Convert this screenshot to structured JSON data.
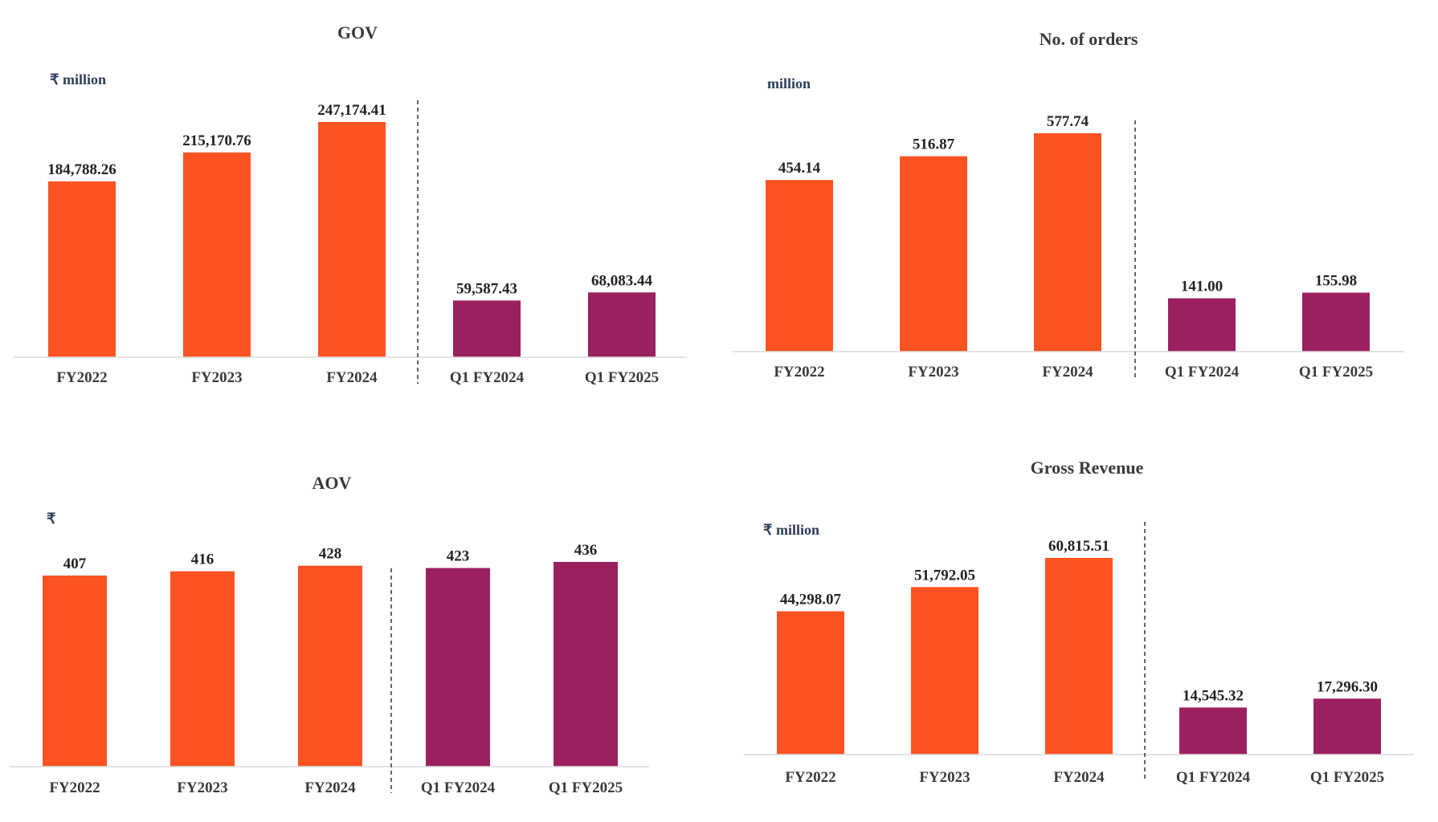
{
  "colors": {
    "annual": "#fd5323",
    "quarter": "#9b2060",
    "axis": "#d9d9d9",
    "divider": "#333333"
  },
  "chart_data": [
    {
      "type": "bar",
      "title": "GOV",
      "unit": "₹ million",
      "categories": [
        "FY2022",
        "FY2023",
        "FY2024",
        "Q1 FY2024",
        "Q1 FY2025"
      ],
      "values": [
        184788.26,
        215170.76,
        247174.41,
        59587.43,
        68083.44
      ],
      "labels": [
        "184,788.26",
        "215,170.76",
        "247,174.41",
        "59,587.43",
        "68,083.44"
      ],
      "ylim": [
        0,
        270000
      ],
      "grid": false
    },
    {
      "type": "bar",
      "title": "No. of orders",
      "unit": "million",
      "categories": [
        "FY2022",
        "FY2023",
        "FY2024",
        "Q1 FY2024",
        "Q1 FY2025"
      ],
      "values": [
        454.14,
        516.87,
        577.74,
        141.0,
        155.98
      ],
      "labels": [
        "454.14",
        "516.87",
        "577.74",
        "141.00",
        "155.98"
      ],
      "ylim": [
        0,
        640
      ],
      "grid": false
    },
    {
      "type": "bar",
      "title": "AOV",
      "unit": "₹",
      "categories": [
        "FY2022",
        "FY2023",
        "FY2024",
        "Q1 FY2024",
        "Q1 FY2025"
      ],
      "values": [
        407,
        416,
        428,
        423,
        436
      ],
      "labels": [
        "407",
        "416",
        "428",
        "423",
        "436"
      ],
      "ylim": [
        0,
        460
      ],
      "grid": false
    },
    {
      "type": "bar",
      "title": "Gross Revenue",
      "unit": "₹ million",
      "categories": [
        "FY2022",
        "FY2023",
        "FY2024",
        "Q1 FY2024",
        "Q1 FY2025"
      ],
      "values": [
        44298.07,
        51792.05,
        60815.51,
        14545.32,
        17296.3
      ],
      "labels": [
        "44,298.07",
        "51,792.05",
        "60,815.51",
        "14,545.32",
        "17,296.30"
      ],
      "ylim": [
        0,
        72000
      ],
      "grid": false
    }
  ]
}
